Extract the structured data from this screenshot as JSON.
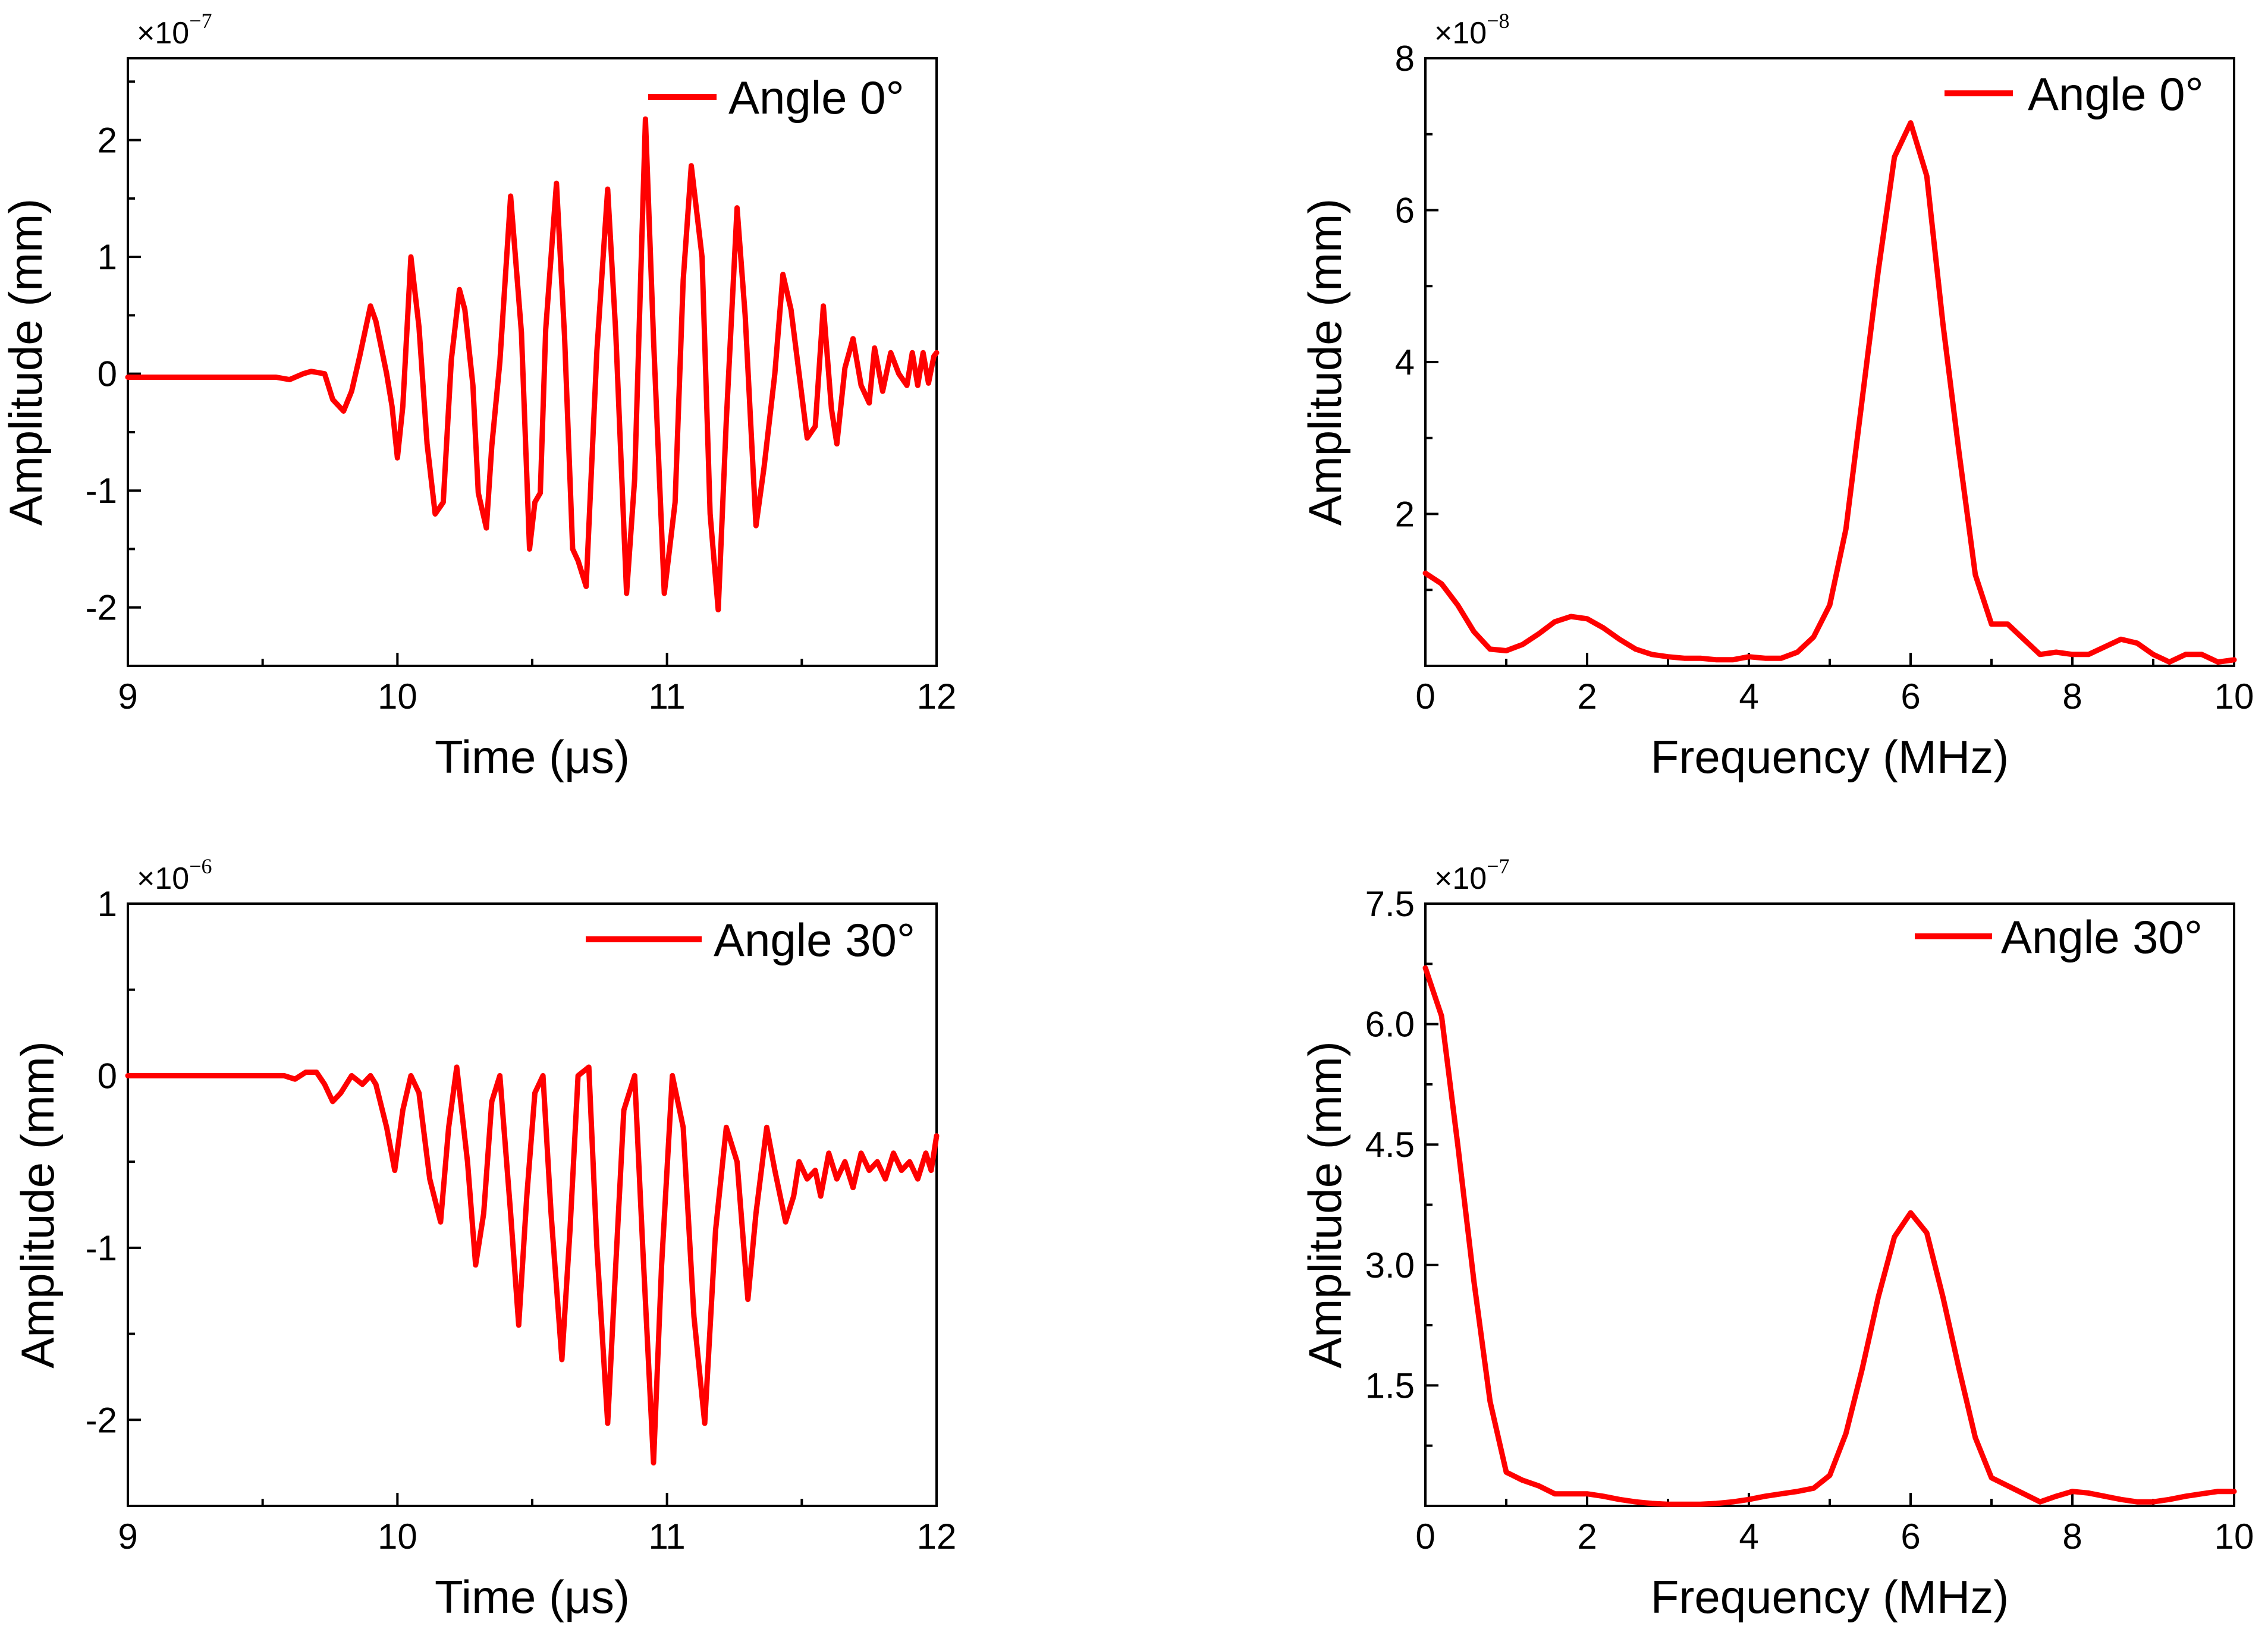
{
  "colors": {
    "series": "#ff0000",
    "axis": "#000000",
    "background": "#ffffff"
  },
  "chart_data": [
    {
      "type": "line",
      "panel": "top-left",
      "xlabel": "Time (μs)",
      "ylabel": "Amplitude (mm)",
      "multiplier": {
        "base": "×10",
        "exp": "−7"
      },
      "xlim": [
        9,
        12
      ],
      "ylim": [
        -2.5,
        2.7
      ],
      "xticks": [
        9,
        10,
        11,
        12
      ],
      "xtick_labels": [
        "9",
        "10",
        "11",
        "12"
      ],
      "xminor": [
        9.5,
        10.5,
        11.5
      ],
      "yticks": [
        -2,
        -1,
        0,
        1,
        2
      ],
      "ytick_labels": [
        "-2",
        "-1",
        "0",
        "1",
        "2"
      ],
      "yminor": [
        -1.5,
        -0.5,
        0.5,
        1.5,
        2.5
      ],
      "legend": {
        "label": "Angle 0°",
        "position": "top-right"
      },
      "series": [
        {
          "name": "Angle 0°",
          "x": [
            9.0,
            9.55,
            9.6,
            9.65,
            9.68,
            9.73,
            9.76,
            9.8,
            9.83,
            9.86,
            9.9,
            9.92,
            9.96,
            9.98,
            10.0,
            10.02,
            10.05,
            10.08,
            10.11,
            10.14,
            10.17,
            10.2,
            10.23,
            10.25,
            10.28,
            10.3,
            10.33,
            10.35,
            10.38,
            10.42,
            10.46,
            10.49,
            10.51,
            10.53,
            10.55,
            10.59,
            10.62,
            10.65,
            10.67,
            10.7,
            10.74,
            10.78,
            10.81,
            10.85,
            10.88,
            10.92,
            10.95,
            10.99,
            11.03,
            11.06,
            11.09,
            11.13,
            11.16,
            11.19,
            11.22,
            11.26,
            11.29,
            11.33,
            11.36,
            11.4,
            11.43,
            11.46,
            11.49,
            11.52,
            11.55,
            11.58,
            11.61,
            11.63,
            11.66,
            11.69,
            11.72,
            11.75,
            11.77,
            11.8,
            11.83,
            11.86,
            11.89,
            11.91,
            11.93,
            11.95,
            11.97,
            11.99,
            12.0
          ],
          "values": [
            -0.03,
            -0.03,
            -0.05,
            0.0,
            0.02,
            0.0,
            -0.22,
            -0.32,
            -0.15,
            0.15,
            0.58,
            0.45,
            0.0,
            -0.28,
            -0.72,
            -0.28,
            1.0,
            0.4,
            -0.6,
            -1.2,
            -1.1,
            0.12,
            0.72,
            0.55,
            -0.1,
            -1.02,
            -1.32,
            -0.62,
            0.1,
            1.52,
            0.35,
            -1.5,
            -1.1,
            -1.02,
            0.38,
            1.63,
            0.32,
            -1.5,
            -1.6,
            -1.82,
            0.2,
            1.58,
            0.35,
            -1.88,
            -0.9,
            2.18,
            0.3,
            -1.88,
            -1.1,
            0.8,
            1.78,
            1.0,
            -1.2,
            -2.02,
            -0.4,
            1.42,
            0.5,
            -1.3,
            -0.8,
            0.0,
            0.85,
            0.55,
            0.0,
            -0.55,
            -0.45,
            0.58,
            -0.3,
            -0.6,
            0.05,
            0.3,
            -0.1,
            -0.25,
            0.22,
            -0.15,
            0.18,
            0.0,
            -0.1,
            0.18,
            -0.1,
            0.18,
            -0.08,
            0.15,
            0.18
          ]
        }
      ]
    },
    {
      "type": "line",
      "panel": "top-right",
      "xlabel": "Frequency (MHz)",
      "ylabel": "Amplitude (mm)",
      "multiplier": {
        "base": "×10",
        "exp": "−8"
      },
      "xlim": [
        0,
        10
      ],
      "ylim": [
        0,
        8
      ],
      "xticks": [
        0,
        2,
        4,
        6,
        8,
        10
      ],
      "xtick_labels": [
        "0",
        "2",
        "4",
        "6",
        "8",
        "10"
      ],
      "xminor": [
        1,
        3,
        5,
        7,
        9
      ],
      "yticks": [
        2,
        4,
        6,
        8
      ],
      "ytick_labels": [
        "2",
        "4",
        "6",
        "8"
      ],
      "yminor": [
        1,
        3,
        5,
        7
      ],
      "legend": {
        "label": "Angle 0°",
        "position": "top-right"
      },
      "series": [
        {
          "name": "Angle 0°",
          "x": [
            0.0,
            0.2,
            0.4,
            0.6,
            0.8,
            1.0,
            1.2,
            1.4,
            1.6,
            1.8,
            2.0,
            2.2,
            2.4,
            2.6,
            2.8,
            3.0,
            3.2,
            3.4,
            3.6,
            3.8,
            4.0,
            4.2,
            4.4,
            4.6,
            4.8,
            5.0,
            5.2,
            5.4,
            5.6,
            5.8,
            6.0,
            6.2,
            6.4,
            6.6,
            6.8,
            7.0,
            7.2,
            7.4,
            7.6,
            7.8,
            8.0,
            8.2,
            8.4,
            8.6,
            8.8,
            9.0,
            9.2,
            9.4,
            9.6,
            9.8,
            10.0
          ],
          "values": [
            1.22,
            1.08,
            0.8,
            0.45,
            0.22,
            0.2,
            0.28,
            0.42,
            0.58,
            0.65,
            0.62,
            0.5,
            0.35,
            0.22,
            0.15,
            0.12,
            0.1,
            0.1,
            0.08,
            0.08,
            0.12,
            0.1,
            0.1,
            0.18,
            0.38,
            0.8,
            1.8,
            3.5,
            5.2,
            6.7,
            7.15,
            6.45,
            4.5,
            2.8,
            1.2,
            0.55,
            0.55,
            0.35,
            0.15,
            0.18,
            0.15,
            0.15,
            0.25,
            0.35,
            0.3,
            0.15,
            0.05,
            0.15,
            0.15,
            0.05,
            0.08
          ]
        }
      ]
    },
    {
      "type": "line",
      "panel": "bottom-left",
      "xlabel": "Time (μs)",
      "ylabel": "Amplitude (mm)",
      "multiplier": {
        "base": "×10",
        "exp": "−6"
      },
      "xlim": [
        9,
        12
      ],
      "ylim": [
        -2.5,
        1.0
      ],
      "xticks": [
        9,
        10,
        11,
        12
      ],
      "xtick_labels": [
        "9",
        "10",
        "11",
        "12"
      ],
      "xminor": [
        9.5,
        10.5,
        11.5
      ],
      "yticks": [
        -2,
        -1,
        0,
        1
      ],
      "ytick_labels": [
        "-2",
        "-1",
        "0",
        "1"
      ],
      "yminor": [
        -1.5,
        -0.5,
        0.5
      ],
      "legend": {
        "label": "Angle 30°",
        "position": "top-right"
      },
      "series": [
        {
          "name": "Angle 30°",
          "x": [
            9.0,
            9.58,
            9.62,
            9.66,
            9.7,
            9.73,
            9.76,
            9.79,
            9.83,
            9.87,
            9.9,
            9.92,
            9.96,
            9.99,
            10.02,
            10.05,
            10.08,
            10.12,
            10.16,
            10.19,
            10.22,
            10.26,
            10.29,
            10.32,
            10.35,
            10.38,
            10.42,
            10.45,
            10.48,
            10.51,
            10.54,
            10.57,
            10.61,
            10.64,
            10.67,
            10.71,
            10.74,
            10.78,
            10.81,
            10.84,
            10.88,
            10.91,
            10.95,
            10.98,
            11.02,
            11.06,
            11.1,
            11.14,
            11.18,
            11.22,
            11.26,
            11.3,
            11.33,
            11.37,
            11.4,
            11.44,
            11.47,
            11.49,
            11.52,
            11.55,
            11.57,
            11.6,
            11.63,
            11.66,
            11.69,
            11.72,
            11.75,
            11.78,
            11.81,
            11.84,
            11.87,
            11.9,
            11.93,
            11.96,
            11.98,
            12.0
          ],
          "values": [
            0.0,
            0.0,
            -0.02,
            0.02,
            0.02,
            -0.05,
            -0.15,
            -0.1,
            0.0,
            -0.05,
            0.0,
            -0.05,
            -0.3,
            -0.55,
            -0.2,
            0.0,
            -0.1,
            -0.6,
            -0.85,
            -0.3,
            0.05,
            -0.5,
            -1.1,
            -0.8,
            -0.15,
            0.0,
            -0.8,
            -1.45,
            -0.7,
            -0.1,
            0.0,
            -0.8,
            -1.65,
            -0.9,
            0.0,
            0.05,
            -1.0,
            -2.02,
            -1.1,
            -0.2,
            0.0,
            -1.0,
            -2.25,
            -1.1,
            0.0,
            -0.3,
            -1.4,
            -2.02,
            -0.9,
            -0.3,
            -0.5,
            -1.3,
            -0.8,
            -0.3,
            -0.55,
            -0.85,
            -0.7,
            -0.5,
            -0.6,
            -0.55,
            -0.7,
            -0.45,
            -0.6,
            -0.5,
            -0.65,
            -0.45,
            -0.55,
            -0.5,
            -0.6,
            -0.45,
            -0.55,
            -0.5,
            -0.6,
            -0.45,
            -0.55,
            -0.35
          ]
        }
      ]
    },
    {
      "type": "line",
      "panel": "bottom-right",
      "xlabel": "Frequency (MHz)",
      "ylabel": "Amplitude (mm)",
      "multiplier": {
        "base": "×10",
        "exp": "−7"
      },
      "xlim": [
        0,
        10
      ],
      "ylim": [
        0,
        7.5
      ],
      "xticks": [
        0,
        2,
        4,
        6,
        8,
        10
      ],
      "xtick_labels": [
        "0",
        "2",
        "4",
        "6",
        "8",
        "10"
      ],
      "xminor": [
        1,
        3,
        5,
        7,
        9
      ],
      "yticks": [
        1.5,
        3.0,
        4.5,
        6.0,
        7.5
      ],
      "ytick_labels": [
        "1.5",
        "3.0",
        "4.5",
        "6.0",
        "7.5"
      ],
      "yminor": [
        0.75,
        2.25,
        3.75,
        5.25,
        6.75
      ],
      "legend": {
        "label": "Angle 30°",
        "position": "top-right"
      },
      "series": [
        {
          "name": "Angle 30°",
          "x": [
            0.0,
            0.2,
            0.4,
            0.6,
            0.8,
            1.0,
            1.2,
            1.4,
            1.6,
            1.8,
            2.0,
            2.2,
            2.4,
            2.6,
            2.8,
            3.0,
            3.2,
            3.4,
            3.6,
            3.8,
            4.0,
            4.2,
            4.4,
            4.6,
            4.8,
            5.0,
            5.2,
            5.4,
            5.6,
            5.8,
            6.0,
            6.2,
            6.4,
            6.6,
            6.8,
            7.0,
            7.2,
            7.4,
            7.6,
            7.8,
            8.0,
            8.2,
            8.4,
            8.6,
            8.8,
            9.0,
            9.2,
            9.4,
            9.6,
            9.8,
            10.0
          ],
          "values": [
            6.7,
            6.1,
            4.5,
            2.8,
            1.3,
            0.42,
            0.32,
            0.25,
            0.15,
            0.15,
            0.15,
            0.12,
            0.08,
            0.05,
            0.03,
            0.02,
            0.02,
            0.02,
            0.03,
            0.05,
            0.08,
            0.12,
            0.15,
            0.18,
            0.22,
            0.38,
            0.9,
            1.7,
            2.6,
            3.35,
            3.65,
            3.4,
            2.6,
            1.7,
            0.85,
            0.35,
            0.25,
            0.15,
            0.05,
            0.12,
            0.18,
            0.16,
            0.12,
            0.08,
            0.05,
            0.05,
            0.08,
            0.12,
            0.15,
            0.18,
            0.18
          ]
        }
      ]
    }
  ]
}
